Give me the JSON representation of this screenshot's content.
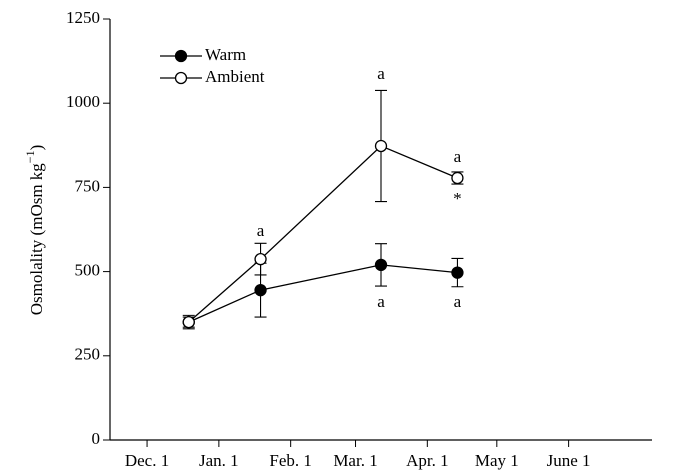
{
  "chart_data": {
    "type": "line",
    "ylabel": [
      "Osmolality (mOsm kg",
      "−1",
      ")"
    ],
    "x": [
      18,
      49,
      101,
      134
    ],
    "series": [
      {
        "name": "Warm",
        "color": "#000000",
        "marker_fill": "#000000",
        "values": [
          350,
          445,
          520,
          497
        ],
        "errors": [
          20,
          80,
          63,
          42
        ]
      },
      {
        "name": "Ambient",
        "color": "#000000",
        "marker_fill": "#ffffff",
        "values": [
          350,
          537,
          873,
          778
        ],
        "errors": [
          15,
          47,
          165,
          18
        ]
      }
    ],
    "annotations": [
      {
        "text": "a",
        "x": 49,
        "y": 618
      },
      {
        "text": "a",
        "x": 101,
        "y": 1084
      },
      {
        "text": "a",
        "x": 134,
        "y": 837
      },
      {
        "text": "*",
        "x": 134,
        "y": 712
      },
      {
        "text": "a",
        "x": 101,
        "y": 407
      },
      {
        "text": "a",
        "x": 134,
        "y": 407
      }
    ],
    "xlim": [
      -16,
      218
    ],
    "xticks": [
      {
        "value": 0,
        "label": "Dec. 1"
      },
      {
        "value": 31,
        "label": "Jan. 1"
      },
      {
        "value": 62,
        "label": "Feb. 1"
      },
      {
        "value": 90,
        "label": "Mar. 1"
      },
      {
        "value": 121,
        "label": "Apr. 1"
      },
      {
        "value": 151,
        "label": "May 1"
      },
      {
        "value": 182,
        "label": "June 1"
      }
    ],
    "ylim": [
      0,
      1250
    ],
    "yticks": [
      0,
      250,
      500,
      750,
      1000,
      1250
    ],
    "legend": "top-left"
  }
}
